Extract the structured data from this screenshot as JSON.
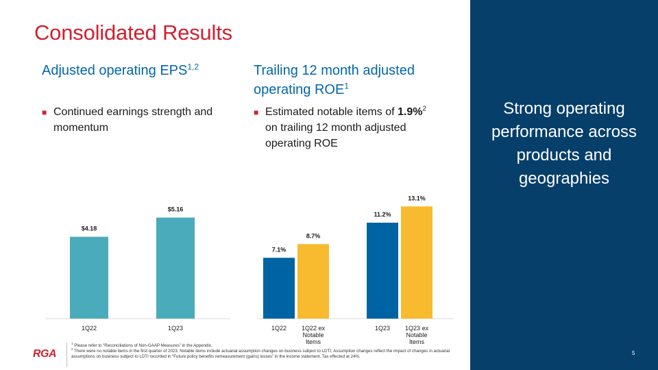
{
  "title": "Consolidated Results",
  "left": {
    "heading": "Adjusted operating EPS",
    "heading_sup": "1,2",
    "bullet": "Continued earnings strength and momentum"
  },
  "right": {
    "heading": "Trailing 12 month adjusted operating ROE",
    "heading_sup": "1",
    "bullet_pre": "Estimated notable items of ",
    "bullet_bold": "1.9%",
    "bullet_sup": "2",
    "bullet_post": " on trailing 12 month adjusted operating ROE"
  },
  "sidebar": {
    "tagline": "Strong operating performance across products and geographies",
    "page_number": "5"
  },
  "logo": "RGA",
  "footnotes": {
    "n1_sup": "1",
    "n1": " Please refer to “Reconciliations of Non-GAAP Measures” in the Appendix.",
    "n2_sup": "2",
    "n2": " There were no notable items in the first quarter of 2023. Notable items include actuarial assumption changes on business subject to LDTI; Assumption changes reflect the impact of changes in actuarial assumptions on business subject to LDTI recorded in “Future policy benefits remeasurement (gains) losses” in the income statement. Tax effected at 24%."
  },
  "colors": {
    "brand_red": "#d1202f",
    "heading_blue": "#0067a5",
    "sidebar_navy": "#073f6b",
    "teal": "#4aabbb",
    "dark_blue": "#0063a3",
    "gold": "#f8bb2f"
  },
  "chart_data": [
    {
      "type": "bar",
      "title": "Adjusted operating EPS",
      "categories": [
        "1Q22",
        "1Q23"
      ],
      "values": [
        4.18,
        5.16
      ],
      "labels": [
        "$4.18",
        "$5.16"
      ],
      "ylim": [
        0,
        6.3
      ]
    },
    {
      "type": "bar",
      "title": "Trailing 12 month adjusted operating ROE",
      "categories": [
        "1Q22",
        "1Q22 ex Notable Items",
        "1Q23",
        "1Q23 ex Notable Items"
      ],
      "values": [
        7.1,
        8.7,
        11.2,
        13.1
      ],
      "labels": [
        "7.1%",
        "8.7%",
        "11.2%",
        "13.1%"
      ],
      "groups": [
        [
          "1Q22",
          "1Q22 ex Notable Items"
        ],
        [
          "1Q23",
          "1Q23 ex Notable Items"
        ]
      ],
      "ylim": [
        0,
        14.4
      ]
    }
  ]
}
